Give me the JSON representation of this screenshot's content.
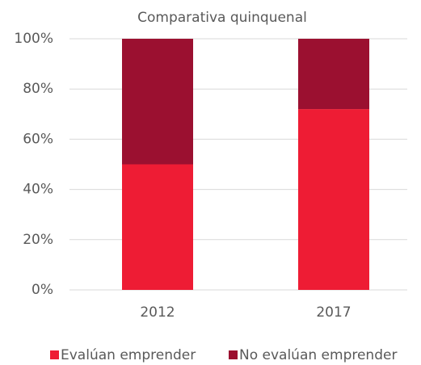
{
  "chart_data": {
    "type": "stacked_bar",
    "title": "Comparativa quinquenal",
    "categories": [
      "2012",
      "2017"
    ],
    "series": [
      {
        "name": "Evalúan emprender",
        "color": "#ee1c34",
        "values": [
          50,
          72
        ]
      },
      {
        "name": "No evalúan emprender",
        "color": "#9b1030",
        "values": [
          50,
          28
        ]
      }
    ],
    "ylim": [
      0,
      100
    ],
    "yticks": [
      {
        "value": 0,
        "label": "0%"
      },
      {
        "value": 20,
        "label": "20%"
      },
      {
        "value": 40,
        "label": "40%"
      },
      {
        "value": 60,
        "label": "60%"
      },
      {
        "value": 80,
        "label": "80%"
      },
      {
        "value": 100,
        "label": "100%"
      }
    ],
    "grid": true,
    "legend": "bottom"
  }
}
